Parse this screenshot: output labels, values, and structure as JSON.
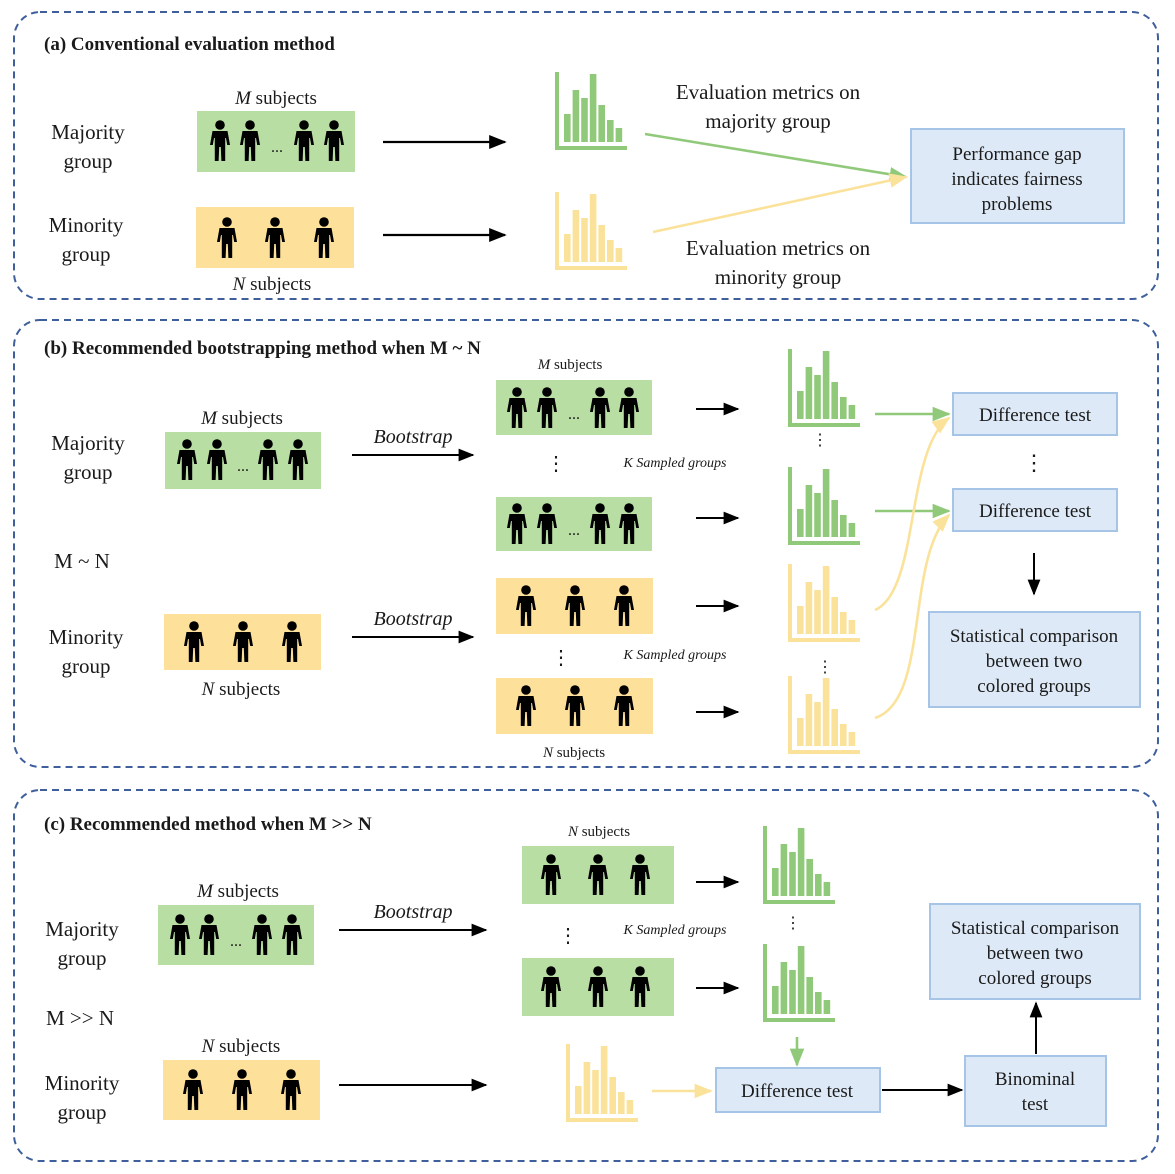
{
  "colors": {
    "majority": "#b8dea4",
    "majority_chart": "#90c97a",
    "minority": "#fde09a",
    "minority_chart": "#fbe29a",
    "result_fill": "#dde9f6",
    "result_stroke": "#a5c4e6",
    "panel_border": "#3e5f9b"
  },
  "panel_a": {
    "title": "(a) Conventional evaluation method",
    "majority_label": "Majority group",
    "minority_label": "Minority group",
    "m_var": "M",
    "n_var": "N",
    "subjects_word": "subjects",
    "majority_metrics": "Evaluation metrics on majority group",
    "minority_metrics": "Evaluation metrics on minority group",
    "result": "Performance gap indicates fairness problems",
    "ellipsis": "..."
  },
  "panel_b": {
    "title": "(b) Recommended bootstrapping method when M ~ N",
    "majority_label": "Majority group",
    "minority_label": "Minority group",
    "m_var": "M",
    "n_var": "N",
    "subjects_word": "subjects",
    "relation": "M ~ N",
    "bootstrap": "Bootstrap",
    "k_var": "K",
    "sampled_groups": "Sampled groups",
    "difference_test": "Difference test",
    "result": "Statistical comparison between two colored groups",
    "ellipsis": "...",
    "vdots": "⋮"
  },
  "panel_c": {
    "title": "(c) Recommended method when M >> N",
    "majority_label": "Majority group",
    "minority_label": "Minority group",
    "m_var": "M",
    "n_var": "N",
    "subjects_word": "subjects",
    "relation": "M >> N",
    "bootstrap": "Bootstrap",
    "k_var": "K",
    "sampled_groups": "Sampled groups",
    "difference_test": "Difference test",
    "binominal_test": "Binominal test",
    "result": "Statistical comparison between two colored groups",
    "ellipsis": "...",
    "vdots": "⋮"
  }
}
